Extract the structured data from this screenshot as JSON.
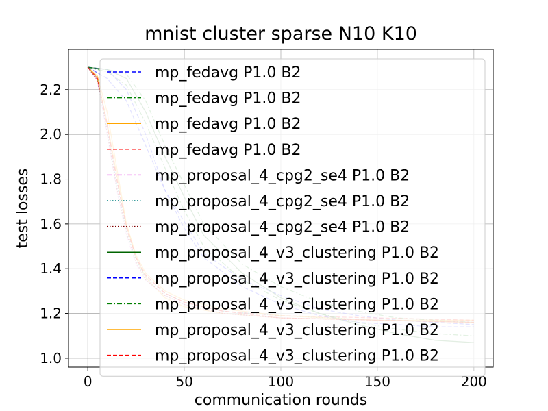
{
  "chart_data": {
    "type": "line",
    "title": "mnist cluster sparse N10 K10",
    "xlabel": "communication rounds",
    "ylabel": "test losses",
    "xlim": [
      -10,
      210
    ],
    "ylim": [
      0.96,
      2.38
    ],
    "xticks": [
      0,
      50,
      100,
      150,
      200
    ],
    "yticks": [
      1.0,
      1.2,
      1.4,
      1.6,
      1.8,
      2.0,
      2.2
    ],
    "xtick_labels": [
      "0",
      "50",
      "100",
      "150",
      "200"
    ],
    "ytick_labels": [
      "1.0",
      "1.2",
      "1.4",
      "1.6",
      "1.8",
      "2.0",
      "2.2"
    ],
    "grid": true,
    "legend": "upper-right",
    "series": [
      {
        "name": "mp_fedavg P1.0 B2",
        "color": "#0000ff",
        "dash": "dashed",
        "x": [
          0,
          10,
          20,
          30,
          40,
          60,
          80,
          100,
          120,
          140,
          160,
          180,
          200
        ],
        "y": [
          2.3,
          2.29,
          2.2,
          2.0,
          1.75,
          1.47,
          1.35,
          1.28,
          1.22,
          1.19,
          1.17,
          1.16,
          1.15
        ]
      },
      {
        "name": "mp_fedavg P1.0 B2",
        "color": "#008000",
        "dash": "dashdot",
        "x": [
          0,
          10,
          20,
          30,
          40,
          60,
          80,
          100,
          120,
          140,
          160,
          180,
          200
        ],
        "y": [
          2.3,
          2.29,
          2.27,
          2.15,
          1.95,
          1.6,
          1.42,
          1.32,
          1.25,
          1.21,
          1.18,
          1.17,
          1.16
        ]
      },
      {
        "name": "mp_fedavg P1.0 B2",
        "color": "#ffa500",
        "dash": "solid",
        "x": [
          0,
          5,
          10,
          15,
          20,
          25,
          30,
          40,
          50,
          70,
          100,
          150,
          200
        ],
        "y": [
          2.3,
          2.26,
          2.1,
          1.85,
          1.6,
          1.45,
          1.36,
          1.27,
          1.23,
          1.2,
          1.18,
          1.17,
          1.17
        ]
      },
      {
        "name": "mp_fedavg P1.0 B2",
        "color": "#ff0000",
        "dash": "dashed",
        "x": [
          0,
          5,
          10,
          15,
          20,
          25,
          30,
          40,
          50,
          70,
          100,
          150,
          200
        ],
        "y": [
          2.3,
          2.25,
          2.05,
          1.8,
          1.58,
          1.45,
          1.37,
          1.29,
          1.25,
          1.21,
          1.19,
          1.18,
          1.17
        ]
      },
      {
        "name": "mp_proposal_4_cpg2_se4 P1.0 B2",
        "color": "#ee82ee",
        "dash": "dashdot",
        "x": [
          0,
          5,
          10,
          15,
          20,
          25,
          30,
          40,
          50,
          70,
          100,
          150,
          200
        ],
        "y": [
          2.3,
          2.24,
          2.0,
          1.75,
          1.55,
          1.42,
          1.35,
          1.28,
          1.24,
          1.2,
          1.18,
          1.17,
          1.16
        ]
      },
      {
        "name": "mp_proposal_4_cpg2_se4 P1.0 B2",
        "color": "#008080",
        "dash": "dotted",
        "x": [
          0,
          5,
          10,
          15,
          20,
          25,
          30,
          40,
          50,
          70,
          100,
          150,
          200
        ],
        "y": [
          2.3,
          2.25,
          2.02,
          1.78,
          1.57,
          1.44,
          1.36,
          1.29,
          1.25,
          1.21,
          1.19,
          1.17,
          1.16
        ]
      },
      {
        "name": "mp_proposal_4_cpg2_se4 P1.0 B2",
        "color": "#800000",
        "dash": "dotted",
        "x": [
          0,
          5,
          10,
          15,
          20,
          25,
          30,
          40,
          50,
          70,
          100,
          150,
          200
        ],
        "y": [
          2.3,
          2.24,
          2.01,
          1.76,
          1.56,
          1.43,
          1.35,
          1.28,
          1.24,
          1.2,
          1.18,
          1.17,
          1.16
        ]
      },
      {
        "name": "mp_proposal_4_v3_clustering P1.0 B2",
        "color": "#006400",
        "dash": "solid",
        "x": [
          0,
          10,
          20,
          30,
          40,
          50,
          60,
          80,
          100,
          120,
          140,
          160,
          180,
          200
        ],
        "y": [
          2.3,
          2.29,
          2.25,
          2.1,
          1.9,
          1.72,
          1.55,
          1.38,
          1.27,
          1.2,
          1.15,
          1.11,
          1.08,
          1.07
        ]
      },
      {
        "name": "mp_proposal_4_v3_clustering P1.0 B2",
        "color": "#0000ff",
        "dash": "dashed",
        "x": [
          0,
          10,
          20,
          30,
          40,
          50,
          60,
          80,
          100,
          120,
          140,
          160,
          180,
          200
        ],
        "y": [
          2.3,
          2.25,
          2.15,
          1.95,
          1.75,
          1.58,
          1.45,
          1.32,
          1.24,
          1.19,
          1.16,
          1.15,
          1.14,
          1.14
        ]
      },
      {
        "name": "mp_proposal_4_v3_clustering P1.0 B2",
        "color": "#008000",
        "dash": "dashdot",
        "x": [
          0,
          10,
          20,
          30,
          40,
          50,
          60,
          80,
          100,
          120,
          140,
          160,
          180,
          200
        ],
        "y": [
          2.3,
          2.28,
          2.22,
          2.05,
          1.85,
          1.66,
          1.5,
          1.35,
          1.26,
          1.2,
          1.16,
          1.13,
          1.11,
          1.1
        ]
      },
      {
        "name": "mp_proposal_4_v3_clustering P1.0 B2",
        "color": "#ffa500",
        "dash": "solid",
        "x": [
          0,
          5,
          10,
          15,
          20,
          25,
          30,
          40,
          50,
          70,
          100,
          150,
          200
        ],
        "y": [
          2.3,
          2.25,
          2.05,
          1.82,
          1.6,
          1.46,
          1.38,
          1.3,
          1.26,
          1.22,
          1.19,
          1.17,
          1.16
        ]
      },
      {
        "name": "mp_proposal_4_v3_clustering P1.0 B2",
        "color": "#ff0000",
        "dash": "dashed",
        "x": [
          0,
          5,
          10,
          15,
          20,
          25,
          30,
          40,
          50,
          70,
          100,
          150,
          200
        ],
        "y": [
          2.3,
          2.25,
          2.04,
          1.8,
          1.59,
          1.45,
          1.37,
          1.29,
          1.25,
          1.21,
          1.18,
          1.17,
          1.16
        ]
      }
    ]
  }
}
